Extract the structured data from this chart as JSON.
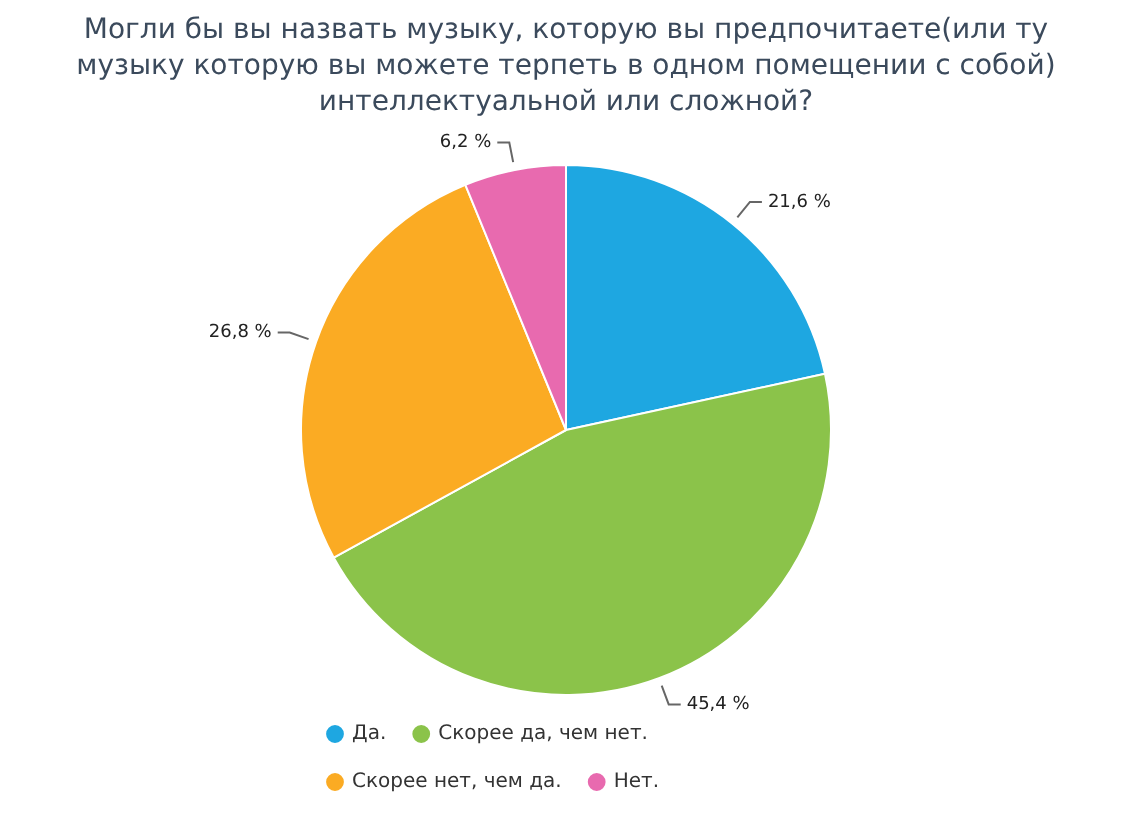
{
  "chart_data": {
    "type": "pie",
    "title": "Могли бы вы назвать музыку, которую вы предпочитаете(или ту музыку которую вы можете терпеть в одном помещении с собой) интеллектуальной или сложной?",
    "categories": [
      "Да.",
      "Скорее да, чем нет.",
      "Скорее нет, чем да.",
      "Нет."
    ],
    "values": [
      21.6,
      45.4,
      26.8,
      6.2
    ],
    "colors": [
      "#1ea7e1",
      "#8bc34a",
      "#fbab23",
      "#e86aaf"
    ],
    "value_labels": [
      "21,6 %",
      "45,4 %",
      "26,8 %",
      "6,2 %"
    ],
    "legend": "bottom left"
  }
}
